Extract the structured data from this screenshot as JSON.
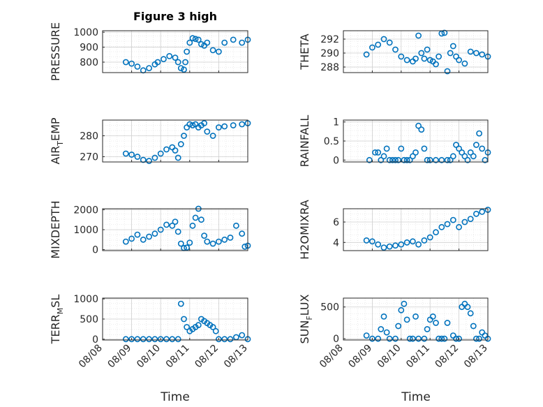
{
  "figure": {
    "title": "Figure 3 high",
    "xlabel": "Time",
    "x_tick_labels": [
      "08/08",
      "08/09",
      "08/10",
      "08/11",
      "08/12",
      "08/13"
    ],
    "marker_color": "#0072BD"
  },
  "chart_data": [
    {
      "type": "scatter",
      "ylabel": "PRESSURE",
      "ylim": [
        730,
        1010
      ],
      "yticks": [
        800,
        900,
        1000
      ],
      "ytick_labels": [
        "800",
        "900",
        "1000"
      ],
      "xlim": [
        0,
        5
      ],
      "grid": true,
      "marker": "open-circle",
      "x": [
        0.8,
        1.0,
        1.2,
        1.4,
        1.6,
        1.8,
        1.9,
        2.1,
        2.3,
        2.5,
        2.6,
        2.7,
        2.8,
        2.85,
        2.9,
        3.0,
        3.1,
        3.2,
        3.3,
        3.4,
        3.5,
        3.6,
        3.8,
        4.0,
        4.2,
        4.5,
        4.8,
        5.0
      ],
      "y": [
        800,
        790,
        770,
        745,
        760,
        785,
        800,
        820,
        840,
        830,
        800,
        760,
        750,
        800,
        870,
        930,
        960,
        955,
        950,
        920,
        910,
        930,
        880,
        870,
        930,
        950,
        930,
        950
      ]
    },
    {
      "type": "scatter",
      "ylabel": "THETA",
      "ylim": [
        287.2,
        293.2
      ],
      "yticks": [
        288,
        290,
        292
      ],
      "ytick_labels": [
        "288",
        "290",
        "292"
      ],
      "xlim": [
        0,
        5
      ],
      "grid": true,
      "marker": "open-circle",
      "x": [
        0.8,
        1.0,
        1.2,
        1.4,
        1.6,
        1.8,
        2.0,
        2.2,
        2.4,
        2.5,
        2.6,
        2.7,
        2.8,
        2.9,
        3.0,
        3.1,
        3.2,
        3.3,
        3.4,
        3.5,
        3.6,
        3.7,
        3.8,
        3.9,
        4.0,
        4.2,
        4.4,
        4.6,
        4.8,
        5.0
      ],
      "y": [
        289.8,
        290.8,
        291.2,
        292.0,
        291.5,
        290.5,
        289.5,
        289.0,
        288.8,
        289.2,
        292.5,
        290.0,
        289.2,
        290.5,
        289.0,
        288.8,
        288.4,
        289.5,
        292.8,
        292.9,
        287.4,
        290.0,
        291.0,
        289.5,
        289.0,
        288.5,
        290.2,
        290.0,
        289.8,
        289.5
      ]
    },
    {
      "type": "scatter",
      "ylabel": "AIR",
      "ylabel_sub": "T",
      "ylabel_suffix": "EMP",
      "ylim": [
        267.5,
        287.5
      ],
      "yticks": [
        270,
        280
      ],
      "ytick_labels": [
        "270",
        "280"
      ],
      "xlim": [
        0,
        5
      ],
      "grid": true,
      "marker": "open-circle",
      "x": [
        0.8,
        1.0,
        1.2,
        1.4,
        1.6,
        1.8,
        2.0,
        2.2,
        2.4,
        2.5,
        2.6,
        2.7,
        2.8,
        2.9,
        3.0,
        3.1,
        3.2,
        3.3,
        3.4,
        3.5,
        3.6,
        3.8,
        4.0,
        4.2,
        4.5,
        4.8,
        5.0
      ],
      "y": [
        271.5,
        271.0,
        270.0,
        268.5,
        268.0,
        269.5,
        271.5,
        273.5,
        274.5,
        273.0,
        269.5,
        276.0,
        280.0,
        284.0,
        285.5,
        285.0,
        285.5,
        284.0,
        285.0,
        286.0,
        282.0,
        280.0,
        284.0,
        284.5,
        285.0,
        285.5,
        286.0
      ]
    },
    {
      "type": "scatter",
      "ylabel": "RAINFALL",
      "ylim": [
        -0.05,
        1.05
      ],
      "yticks": [
        0,
        0.5,
        1
      ],
      "ytick_labels": [
        "0",
        "0.5",
        "1"
      ],
      "xlim": [
        0,
        5
      ],
      "grid": true,
      "marker": "open-circle",
      "x": [
        0.9,
        1.1,
        1.2,
        1.3,
        1.4,
        1.5,
        1.6,
        1.7,
        1.8,
        1.9,
        2.0,
        2.1,
        2.2,
        2.3,
        2.4,
        2.5,
        2.6,
        2.7,
        2.8,
        2.9,
        3.0,
        3.2,
        3.4,
        3.6,
        3.7,
        3.8,
        3.9,
        4.0,
        4.1,
        4.2,
        4.3,
        4.4,
        4.5,
        4.6,
        4.7,
        4.8,
        4.9,
        5.0
      ],
      "y": [
        0,
        0.2,
        0.2,
        0,
        0.1,
        0.3,
        0,
        0,
        0,
        0,
        0.3,
        0,
        0,
        0,
        0.1,
        0.2,
        0.9,
        0.8,
        0.3,
        0,
        0,
        0,
        0,
        0,
        0,
        0.1,
        0.4,
        0.3,
        0.2,
        0.1,
        0,
        0.2,
        0.1,
        0.4,
        0.7,
        0.3,
        0,
        0.2
      ]
    },
    {
      "type": "scatter",
      "ylabel": "MIXDEPTH",
      "ylim": [
        -50,
        2050
      ],
      "yticks": [
        0,
        1000,
        2000
      ],
      "ytick_labels": [
        "0",
        "1000",
        "2000"
      ],
      "xlim": [
        0,
        5
      ],
      "grid": true,
      "marker": "open-circle",
      "x": [
        0.8,
        1.0,
        1.2,
        1.4,
        1.6,
        1.8,
        2.0,
        2.2,
        2.4,
        2.5,
        2.6,
        2.7,
        2.8,
        2.9,
        3.0,
        3.1,
        3.2,
        3.3,
        3.4,
        3.5,
        3.6,
        3.8,
        4.0,
        4.2,
        4.4,
        4.6,
        4.8,
        4.9,
        5.0
      ],
      "y": [
        400,
        550,
        750,
        500,
        650,
        800,
        1000,
        1250,
        1200,
        1400,
        900,
        300,
        80,
        100,
        350,
        1200,
        1600,
        2050,
        1500,
        700,
        400,
        300,
        400,
        500,
        600,
        1200,
        800,
        150,
        200
      ]
    },
    {
      "type": "scatter",
      "ylabel": "H2OMIXRA",
      "ylim": [
        3.2,
        7.3
      ],
      "yticks": [
        4,
        6
      ],
      "ytick_labels": [
        "4",
        "6"
      ],
      "xlim": [
        0,
        5
      ],
      "grid": true,
      "marker": "open-circle",
      "x": [
        0.8,
        1.0,
        1.2,
        1.4,
        1.6,
        1.8,
        2.0,
        2.2,
        2.4,
        2.6,
        2.8,
        3.0,
        3.2,
        3.4,
        3.6,
        3.8,
        4.0,
        4.2,
        4.4,
        4.6,
        4.8,
        5.0
      ],
      "y": [
        4.2,
        4.1,
        3.8,
        3.5,
        3.6,
        3.7,
        3.8,
        4.0,
        4.1,
        3.8,
        4.2,
        4.5,
        5.0,
        5.5,
        5.8,
        6.2,
        5.5,
        6.0,
        6.3,
        6.8,
        7.0,
        7.2
      ]
    },
    {
      "type": "scatter",
      "ylabel": "TERR",
      "ylabel_sub": "M",
      "ylabel_suffix": "SL",
      "ylim": [
        -20,
        1020
      ],
      "yticks": [
        0,
        500,
        1000
      ],
      "ytick_labels": [
        "0",
        "500",
        "1000"
      ],
      "xlim": [
        0,
        5
      ],
      "grid": true,
      "marker": "open-circle",
      "x": [
        0.8,
        1.0,
        1.2,
        1.4,
        1.6,
        1.8,
        2.0,
        2.2,
        2.4,
        2.6,
        2.7,
        2.8,
        2.9,
        3.0,
        3.1,
        3.2,
        3.3,
        3.4,
        3.5,
        3.6,
        3.7,
        3.8,
        3.9,
        4.0,
        4.2,
        4.4,
        4.6,
        4.8,
        5.0
      ],
      "y": [
        0,
        0,
        0,
        0,
        0,
        0,
        0,
        0,
        0,
        0,
        880,
        500,
        300,
        200,
        250,
        300,
        350,
        500,
        450,
        400,
        350,
        300,
        200,
        0,
        0,
        0,
        50,
        100,
        0
      ]
    },
    {
      "type": "scatter",
      "ylabel": "SUN",
      "ylabel_sub": "F",
      "ylabel_suffix": "LUX",
      "ylim": [
        -20,
        640
      ],
      "yticks": [
        0,
        500
      ],
      "ytick_labels": [
        "0",
        "500"
      ],
      "xlim": [
        0,
        5
      ],
      "grid": true,
      "marker": "open-circle",
      "x": [
        0.8,
        1.0,
        1.2,
        1.3,
        1.4,
        1.5,
        1.6,
        1.8,
        1.9,
        2.0,
        2.1,
        2.2,
        2.3,
        2.4,
        2.5,
        2.6,
        2.8,
        2.9,
        3.0,
        3.1,
        3.2,
        3.3,
        3.4,
        3.5,
        3.6,
        3.8,
        3.9,
        4.0,
        4.1,
        4.2,
        4.3,
        4.4,
        4.5,
        4.6,
        4.7,
        4.8,
        4.9,
        5.0
      ],
      "y": [
        50,
        0,
        0,
        150,
        350,
        100,
        0,
        0,
        200,
        450,
        550,
        300,
        0,
        0,
        350,
        0,
        0,
        150,
        300,
        350,
        250,
        0,
        0,
        0,
        250,
        50,
        0,
        0,
        500,
        550,
        500,
        400,
        200,
        0,
        0,
        100,
        50,
        0
      ]
    }
  ]
}
